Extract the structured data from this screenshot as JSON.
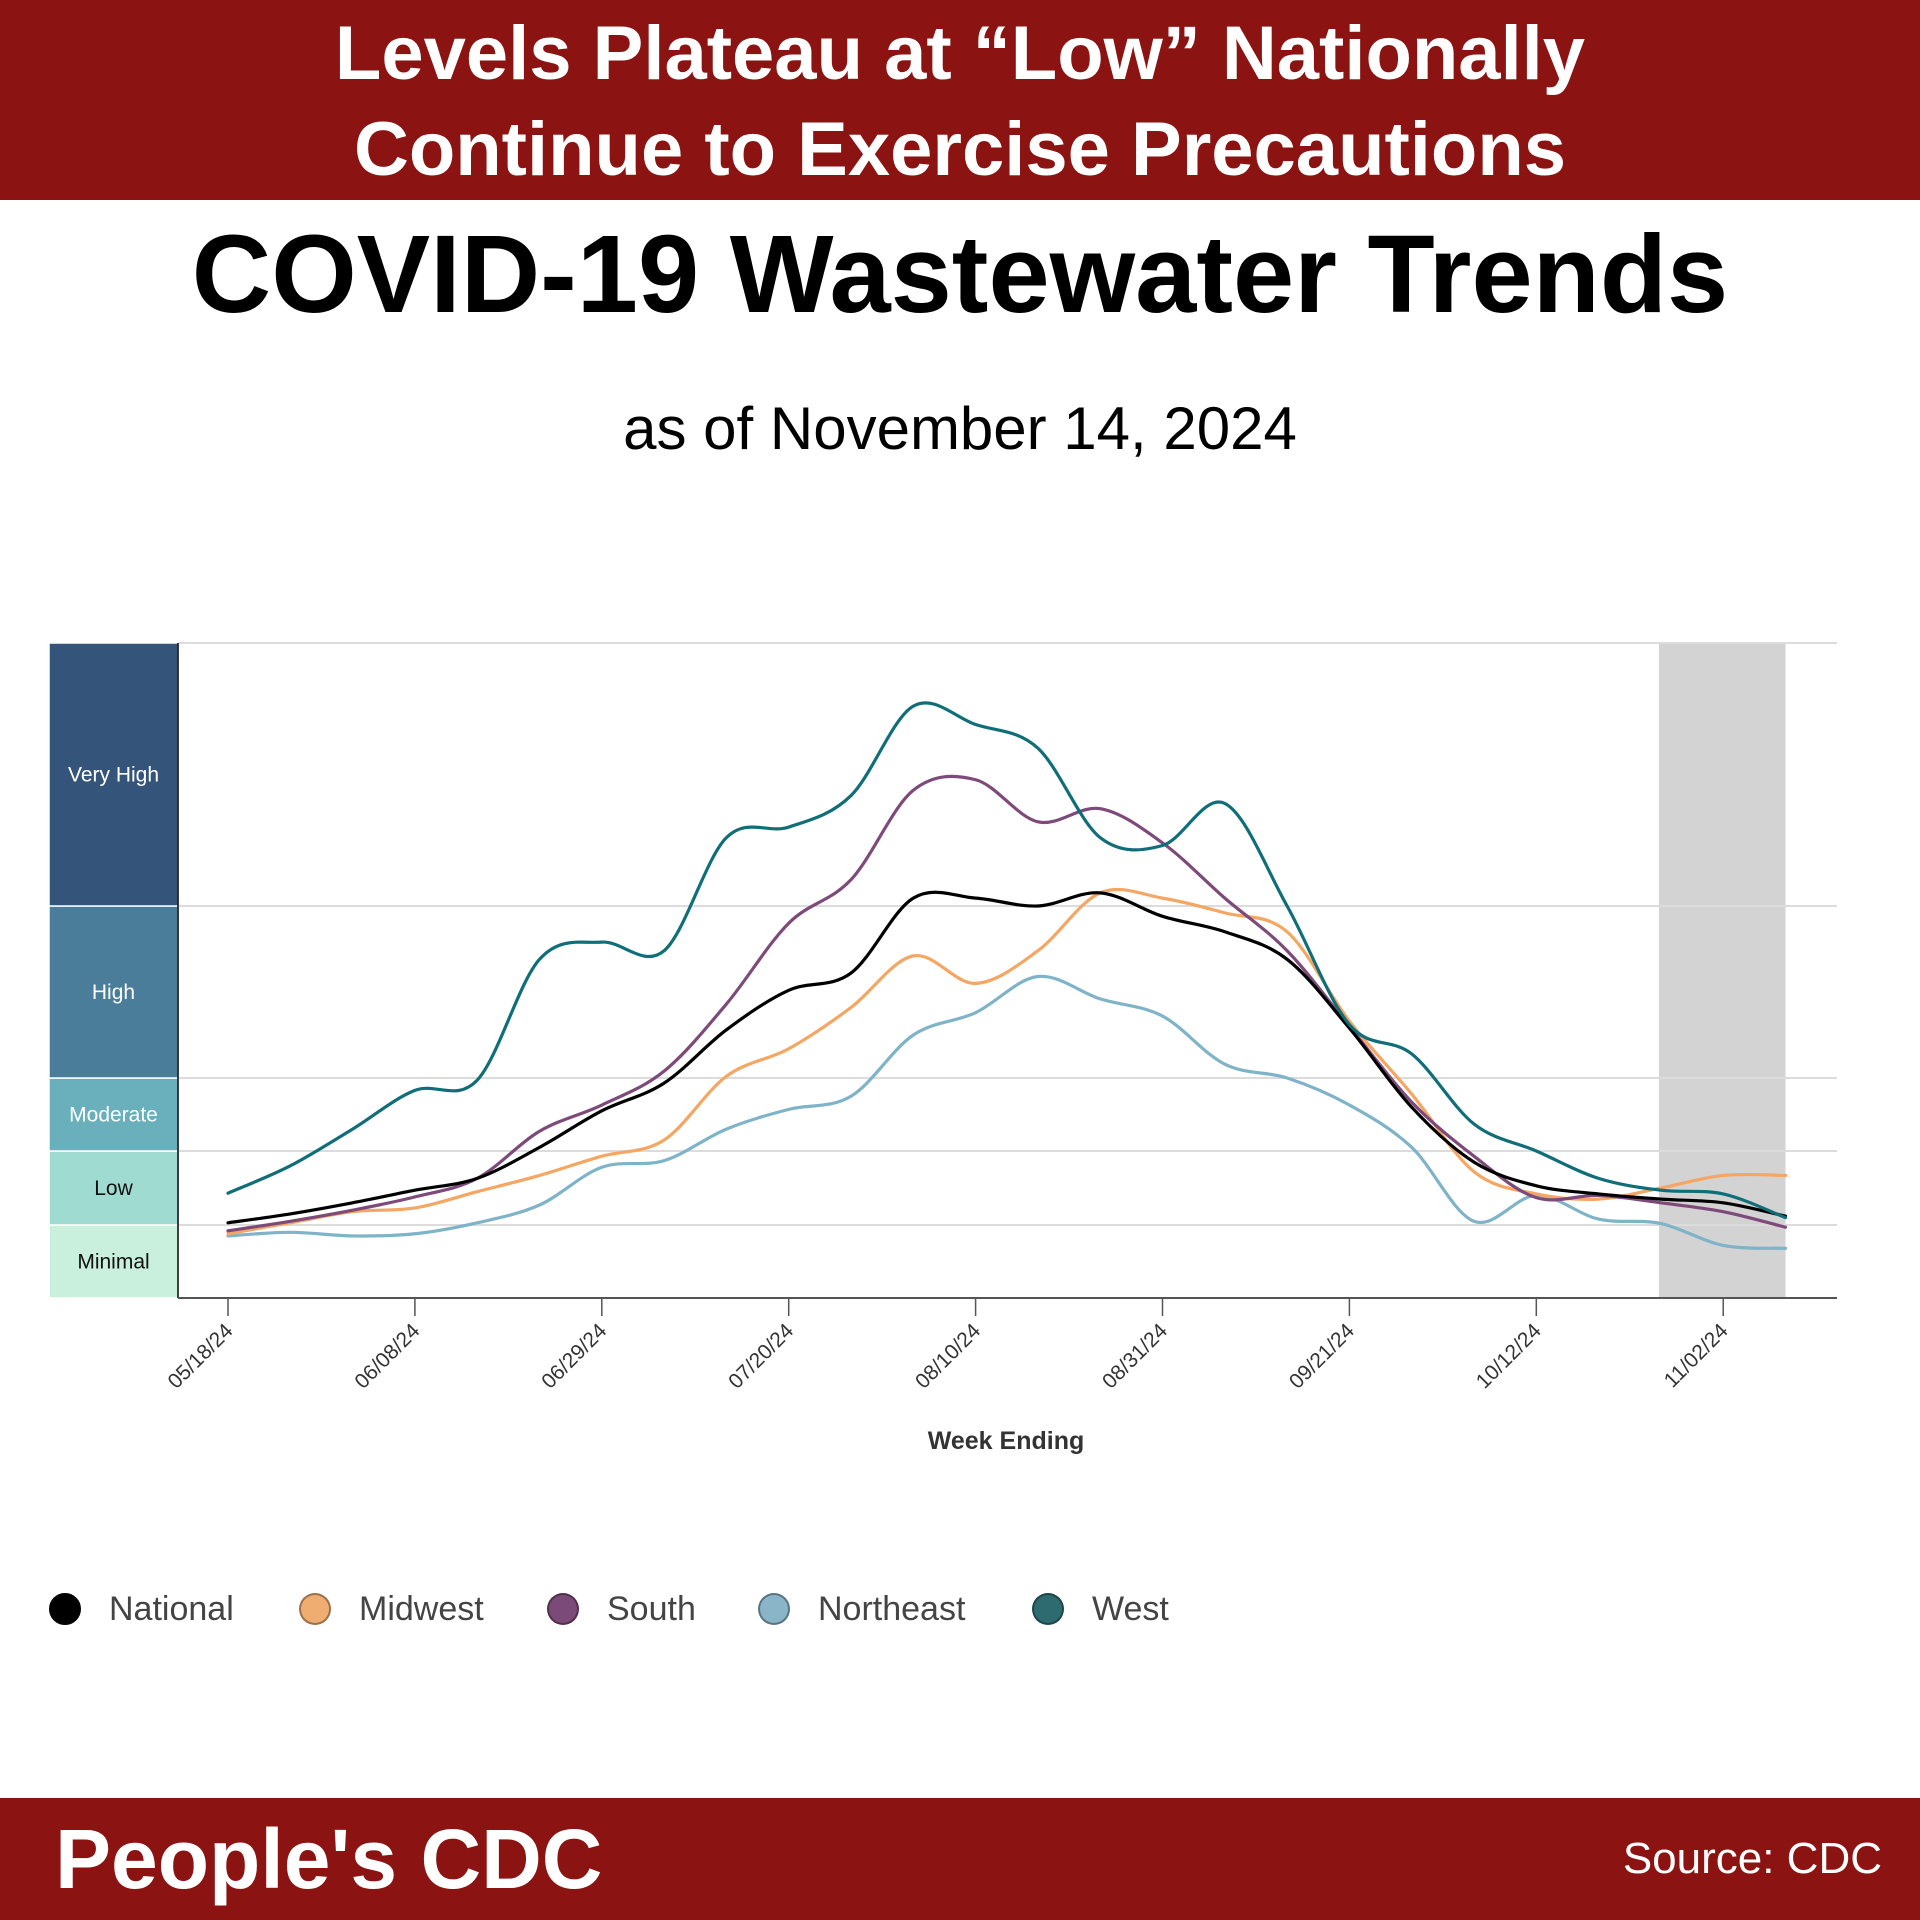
{
  "header": {
    "line1": "Levels Plateau at “Low” Nationally",
    "line2": "Continue to Exercise Precautions",
    "bg_color": "#8b1412"
  },
  "footer": {
    "brand": "People's CDC",
    "source": "Source: CDC"
  },
  "chart_data": {
    "type": "line",
    "title": "COVID-19 Wastewater Trends",
    "subtitle": "as of November 14, 2024",
    "xlabel": "Week Ending",
    "ylabel": "",
    "y_scale": "wastewater viral activity level bands (Minimal=0-1, Low=1-2, Moderate=2-3, High=3-4, Very High=4-5)",
    "levels": [
      {
        "name": "Minimal",
        "range": [
          0,
          1
        ],
        "color": "#c8f0dc",
        "text_color": "#111"
      },
      {
        "name": "Low",
        "range": [
          1,
          2
        ],
        "color": "#a0dbd2",
        "text_color": "#111"
      },
      {
        "name": "Moderate",
        "range": [
          2,
          3
        ],
        "color": "#6aafbc",
        "text_color": "#fff"
      },
      {
        "name": "High",
        "range": [
          3,
          4
        ],
        "color": "#4a7d9a",
        "text_color": "#fff"
      },
      {
        "name": "Very High",
        "range": [
          4,
          5
        ],
        "color": "#35547a",
        "text_color": "#fff"
      }
    ],
    "x": [
      "05/18/24",
      "05/25/24",
      "06/01/24",
      "06/08/24",
      "06/15/24",
      "06/22/24",
      "06/29/24",
      "07/06/24",
      "07/13/24",
      "07/20/24",
      "07/27/24",
      "08/03/24",
      "08/10/24",
      "08/17/24",
      "08/24/24",
      "08/31/24",
      "09/07/24",
      "09/14/24",
      "09/21/24",
      "09/28/24",
      "10/05/24",
      "10/12/24",
      "10/19/24",
      "10/26/24",
      "11/02/24",
      "11/09/24"
    ],
    "tick_labels": [
      "05/18/24",
      "06/08/24",
      "06/29/24",
      "07/20/24",
      "08/10/24",
      "08/31/24",
      "09/21/24",
      "10/12/24",
      "11/02/24"
    ],
    "shaded_region": {
      "from": "10/26/24",
      "to": "11/09/24",
      "color": "#d3d3d3"
    },
    "grid": "horizontal at level boundaries",
    "legend_position": "bottom-left",
    "series": [
      {
        "name": "National",
        "color": "#000000",
        "legend_color": "#000000",
        "values": [
          1.03,
          1.15,
          1.3,
          1.47,
          1.63,
          2.05,
          2.55,
          2.93,
          3.28,
          3.51,
          3.61,
          4.03,
          4.03,
          4.0,
          4.05,
          3.94,
          3.85,
          3.69,
          3.29,
          2.6,
          1.85,
          1.53,
          1.42,
          1.35,
          1.3,
          1.12
        ]
      },
      {
        "name": "Midwest",
        "color": "#f5a662",
        "legend_color": "#f0ad72",
        "values": [
          0.88,
          1.03,
          1.18,
          1.23,
          1.45,
          1.67,
          1.93,
          2.15,
          3.01,
          3.17,
          3.41,
          3.71,
          3.55,
          3.74,
          4.05,
          4.03,
          3.96,
          3.85,
          3.33,
          2.78,
          1.72,
          1.42,
          1.35,
          1.5,
          1.67,
          1.67
        ]
      },
      {
        "name": "South",
        "color": "#7d4a7a",
        "legend_color": "#7b4a78",
        "values": [
          0.92,
          1.05,
          1.2,
          1.38,
          1.63,
          2.27,
          2.63,
          3.04,
          3.43,
          3.9,
          4.1,
          4.44,
          4.48,
          4.32,
          4.37,
          4.24,
          4.03,
          3.74,
          3.3,
          2.67,
          1.93,
          1.37,
          1.4,
          1.3,
          1.18,
          0.97
        ]
      },
      {
        "name": "Northeast",
        "color": "#7fb3c8",
        "legend_color": "#8ab4c8",
        "values": [
          0.85,
          0.9,
          0.85,
          0.88,
          1.03,
          1.27,
          1.78,
          1.87,
          2.3,
          2.57,
          2.75,
          3.25,
          3.38,
          3.59,
          3.46,
          3.36,
          3.08,
          3.0,
          2.63,
          2.05,
          1.05,
          1.4,
          1.08,
          1.02,
          0.72,
          0.68
        ]
      },
      {
        "name": "West",
        "color": "#0f6e78",
        "legend_color": "#2e6b70",
        "values": [
          1.43,
          1.8,
          2.3,
          2.83,
          2.97,
          3.69,
          3.79,
          3.74,
          4.26,
          4.3,
          4.42,
          4.76,
          4.69,
          4.6,
          4.26,
          4.23,
          4.39,
          4.0,
          3.31,
          3.14,
          2.37,
          2.0,
          1.63,
          1.47,
          1.42,
          1.1
        ]
      }
    ]
  }
}
